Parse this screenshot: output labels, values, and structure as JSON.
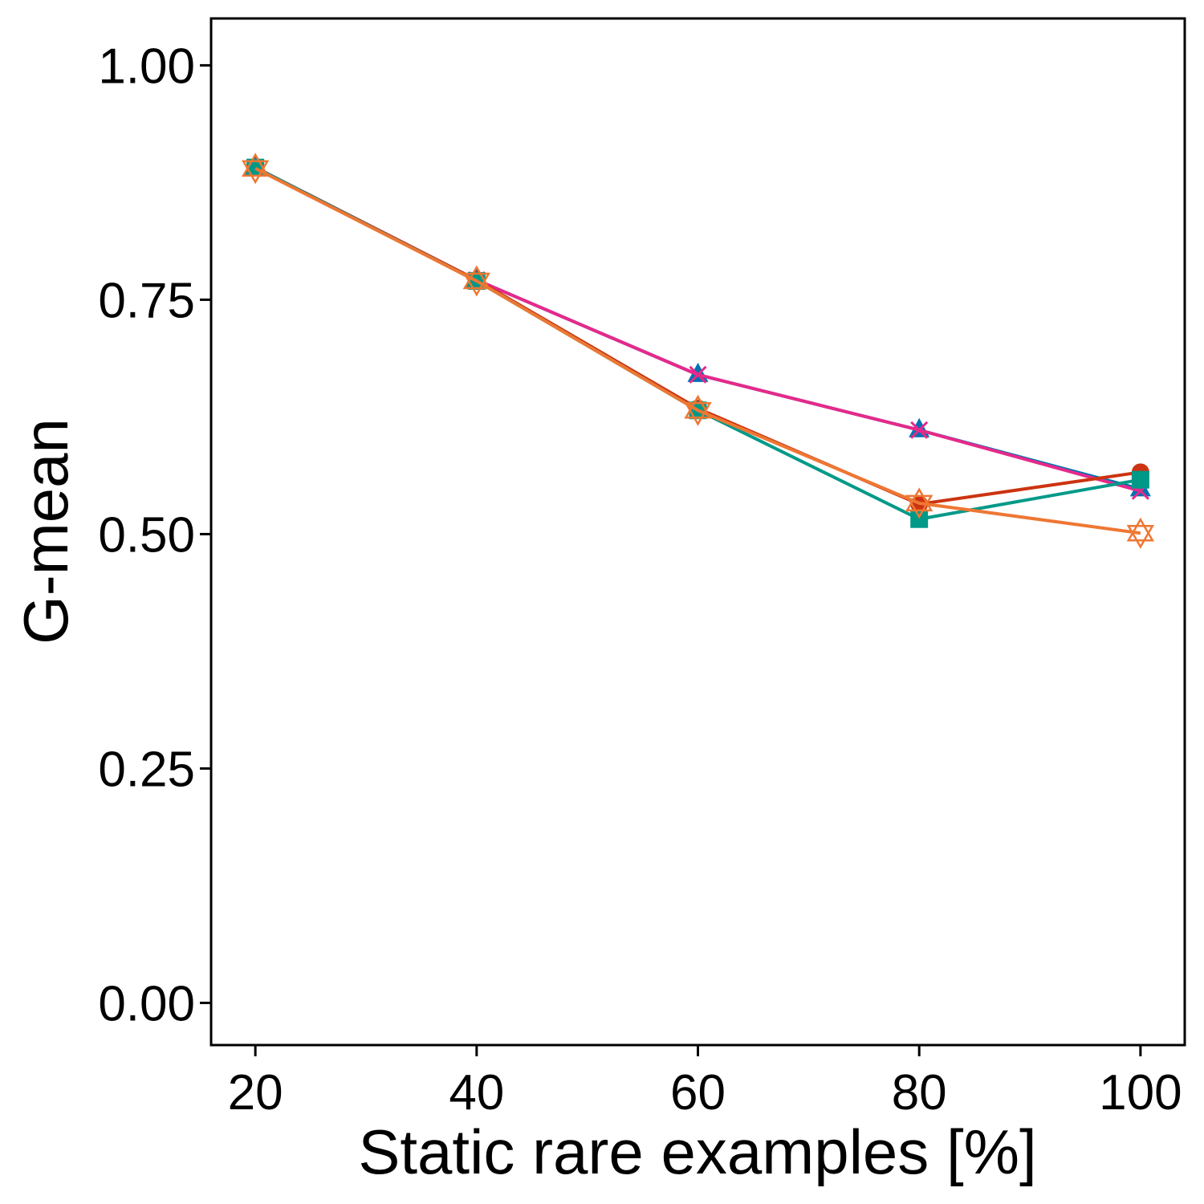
{
  "chart_data": {
    "type": "line",
    "title": "",
    "xlabel": "Static rare examples [%]",
    "ylabel": "G-mean",
    "x": [
      20,
      40,
      60,
      80,
      100
    ],
    "xlim": [
      16,
      104
    ],
    "ylim": [
      -0.045,
      1.05
    ],
    "xticks": [
      "20",
      "40",
      "60",
      "80",
      "100"
    ],
    "yticks": [
      "0.00",
      "0.25",
      "0.50",
      "0.75",
      "1.00"
    ],
    "grid": false,
    "legend": "none",
    "series": [
      {
        "color": "#0072B2",
        "marker": "triangle",
        "values": [
          0.891,
          0.771,
          0.67,
          0.611,
          0.548
        ]
      },
      {
        "color": "#E7298A",
        "marker": "x",
        "values": [
          0.891,
          0.771,
          0.67,
          0.611,
          0.546
        ]
      },
      {
        "color": "#CC3311",
        "marker": "circle",
        "values": [
          0.891,
          0.771,
          0.634,
          0.532,
          0.566
        ]
      },
      {
        "color": "#009988",
        "marker": "square",
        "values": [
          0.891,
          0.77,
          0.632,
          0.516,
          0.558
        ]
      },
      {
        "color": "#EE7733",
        "marker": "star",
        "values": [
          0.89,
          0.77,
          0.632,
          0.533,
          0.501
        ]
      }
    ]
  }
}
